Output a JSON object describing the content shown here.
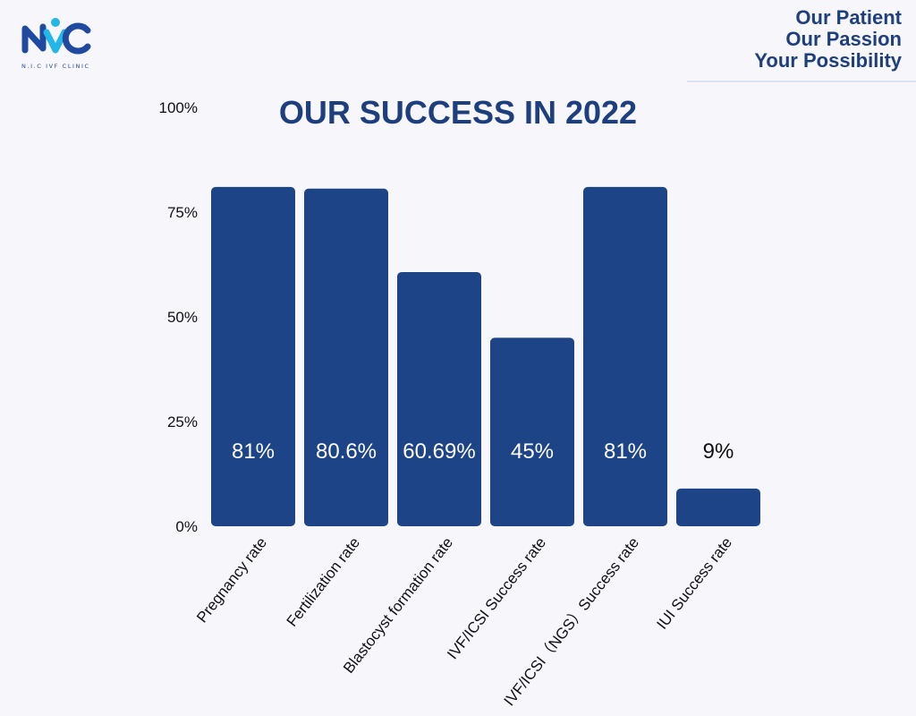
{
  "brand": {
    "caption": "N.I.C IVF CLINIC",
    "colors": {
      "primary": "#1e3f7e",
      "accent": "#23b6e6",
      "logo_blue": "#1f4aa0"
    }
  },
  "tagline": {
    "line1": "Our Patient",
    "line2": "Our Passion",
    "line3": "Your Possibility"
  },
  "chart_data": {
    "type": "bar",
    "title": "OUR SUCCESS IN 2022",
    "xlabel": "",
    "ylabel": "",
    "categories": [
      "Pregnancy rate",
      "Fertilization rate",
      "Blastocyst formation rate",
      "IVF/ICSI Success rate",
      "IVF/ICSI（NGS）Success rate",
      "IUI Success rate"
    ],
    "values": [
      81,
      80.6,
      60.69,
      45,
      81,
      9
    ],
    "value_labels": [
      "81%",
      "80.6%",
      "60.69%",
      "45%",
      "81%",
      "9%"
    ],
    "ylim": [
      0,
      100
    ],
    "yticks": [
      0,
      25,
      50,
      75,
      100
    ],
    "ytick_labels": [
      "0%",
      "25%",
      "50%",
      "75%",
      "100%"
    ],
    "grid": false,
    "bar_color": "#1e4488"
  }
}
